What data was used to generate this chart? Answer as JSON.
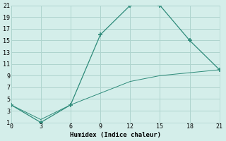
{
  "line1_x": [
    0,
    3,
    6,
    9,
    12,
    15,
    18,
    21
  ],
  "line1_y": [
    4,
    1,
    4,
    16,
    21,
    21,
    15,
    10
  ],
  "line2_x": [
    0,
    3,
    6,
    9,
    12,
    15,
    18,
    21
  ],
  "line2_y": [
    4,
    1.5,
    4,
    6,
    8,
    9,
    9.5,
    10
  ],
  "line_color": "#2e8b7a",
  "bg_color": "#d4eeea",
  "grid_color": "#aed4ce",
  "xlabel": "Humidex (Indice chaleur)",
  "xlim": [
    0,
    21
  ],
  "ylim": [
    1,
    21
  ],
  "xticks": [
    0,
    3,
    6,
    9,
    12,
    15,
    18,
    21
  ],
  "yticks": [
    1,
    3,
    5,
    7,
    9,
    11,
    13,
    15,
    17,
    19,
    21
  ],
  "marker": "+"
}
